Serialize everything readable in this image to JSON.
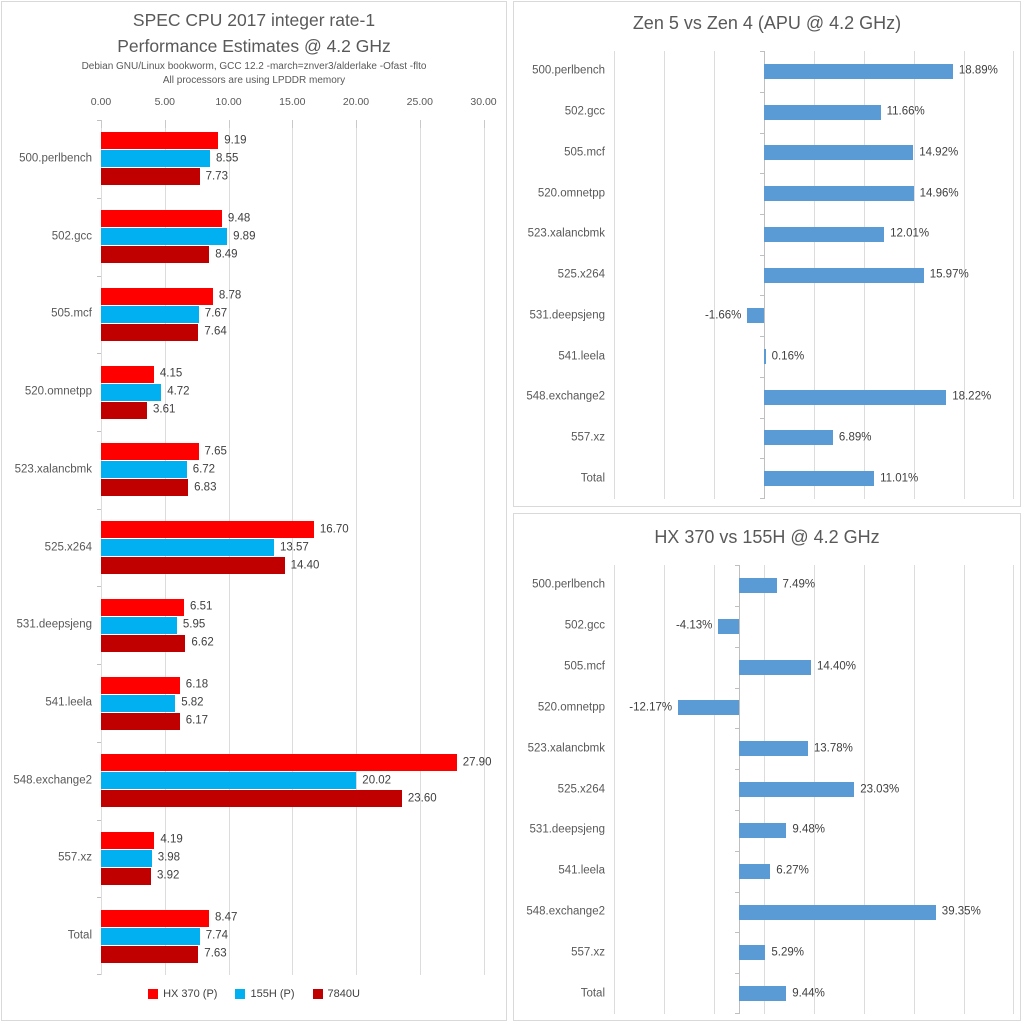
{
  "chart_data": [
    {
      "type": "bar",
      "orientation": "horizontal",
      "title_lines": [
        "SPEC CPU 2017 integer rate-1",
        "Performance Estimates @ 4.2 GHz"
      ],
      "subtitle_lines": [
        "Debian GNU/Linux bookworm, GCC 12.2 -march=znver3/alderlake -Ofast -flto",
        "All processors are using LPDDR memory"
      ],
      "categories": [
        "500.perlbench",
        "502.gcc",
        "505.mcf",
        "520.omnetpp",
        "523.xalancbmk",
        "525.x264",
        "531.deepsjeng",
        "541.leela",
        "548.exchange2",
        "557.xz",
        "Total"
      ],
      "series": [
        {
          "name": "HX 370 (P)",
          "color": "#FF0000",
          "values": [
            9.19,
            9.48,
            8.78,
            4.15,
            7.65,
            16.7,
            6.51,
            6.18,
            27.9,
            4.19,
            8.47
          ],
          "labels": [
            "9.19",
            "9.48",
            "8.78",
            "4.15",
            "7.65",
            "16.70",
            "6.51",
            "6.18",
            "27.90",
            "4.19",
            "8.47"
          ]
        },
        {
          "name": "155H (P)",
          "color": "#00B0F0",
          "values": [
            8.55,
            9.89,
            7.67,
            4.72,
            6.72,
            13.57,
            5.95,
            5.82,
            20.02,
            3.98,
            7.74
          ],
          "labels": [
            "8.55",
            "9.89",
            "7.67",
            "4.72",
            "6.72",
            "13.57",
            "5.95",
            "5.82",
            "20.02",
            "3.98",
            "7.74"
          ]
        },
        {
          "name": "7840U",
          "color": "#C00000",
          "values": [
            7.73,
            8.49,
            7.64,
            3.61,
            6.83,
            14.4,
            6.62,
            6.17,
            23.6,
            3.92,
            7.63
          ],
          "labels": [
            "7.73",
            "8.49",
            "7.64",
            "3.61",
            "6.83",
            "14.40",
            "6.62",
            "6.17",
            "23.60",
            "3.92",
            "7.63"
          ]
        }
      ],
      "x_axis": {
        "position": "top",
        "tick_values": [
          0,
          5,
          10,
          15,
          20,
          25,
          30
        ],
        "tick_labels": [
          "0.00",
          "5.00",
          "10.00",
          "15.00",
          "20.00",
          "25.00",
          "30.00"
        ]
      },
      "xlim": [
        0,
        32
      ],
      "grid": true,
      "legend_position": "bottom"
    },
    {
      "type": "bar",
      "orientation": "horizontal",
      "title": "Zen 5 vs Zen 4 (APU @ 4.2 GHz)",
      "color": "#5B9BD5",
      "categories": [
        "500.perlbench",
        "502.gcc",
        "505.mcf",
        "520.omnetpp",
        "523.xalancbmk",
        "525.x264",
        "531.deepsjeng",
        "541.leela",
        "548.exchange2",
        "557.xz",
        "Total"
      ],
      "values": [
        18.89,
        11.66,
        14.92,
        14.96,
        12.01,
        15.97,
        -1.66,
        0.16,
        18.22,
        6.89,
        11.01
      ],
      "labels": [
        "18.89%",
        "11.66%",
        "14.92%",
        "14.96%",
        "12.01%",
        "15.97%",
        "-1.66%",
        "0.16%",
        "18.22%",
        "6.89%",
        "11.01%"
      ],
      "xlim": [
        -15,
        25
      ],
      "grid_step": 5,
      "grid": true,
      "legend_position": "none"
    },
    {
      "type": "bar",
      "orientation": "horizontal",
      "title": "HX 370 vs 155H @ 4.2 GHz",
      "color": "#5B9BD5",
      "categories": [
        "500.perlbench",
        "502.gcc",
        "505.mcf",
        "520.omnetpp",
        "523.xalancbmk",
        "525.x264",
        "531.deepsjeng",
        "541.leela",
        "548.exchange2",
        "557.xz",
        "Total"
      ],
      "values": [
        7.49,
        -4.13,
        14.4,
        -12.17,
        13.78,
        23.03,
        9.48,
        6.27,
        39.35,
        5.29,
        9.44
      ],
      "labels": [
        "7.49%",
        "-4.13%",
        "14.40%",
        "-12.17%",
        "13.78%",
        "23.03%",
        "9.48%",
        "6.27%",
        "39.35%",
        "5.29%",
        "9.44%"
      ],
      "xlim": [
        -25,
        55
      ],
      "grid_step": 10,
      "grid": true,
      "legend_position": "none"
    }
  ],
  "colors": {
    "gridline": "#DCDCDC",
    "axis": "#BFBFBF",
    "title_text": "#595959",
    "category_text": "#595959",
    "value_text": "#404040",
    "panel_border": "#D9D9D9",
    "background": "#FFFFFF"
  }
}
